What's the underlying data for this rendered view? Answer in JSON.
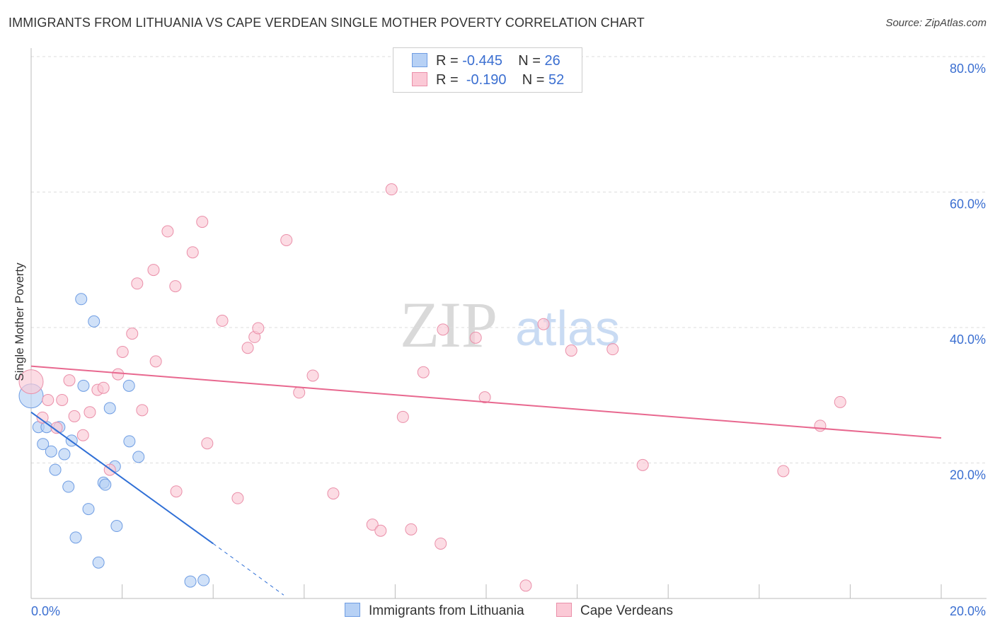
{
  "title": "IMMIGRANTS FROM LITHUANIA VS CAPE VERDEAN SINGLE MOTHER POVERTY CORRELATION CHART",
  "source": "Source: ZipAtlas.com",
  "watermark": {
    "zip": "ZIP",
    "atlas": "atlas"
  },
  "colors": {
    "blue_fill": "#b7d1f5",
    "blue_stroke": "#6f9de3",
    "blue_line": "#2f6fd6",
    "pink_fill": "#fbc9d6",
    "pink_stroke": "#ea8fa9",
    "pink_line": "#e8688f",
    "tick_text": "#3b6fd1"
  },
  "legend": {
    "rows": [
      {
        "r_label": "R =",
        "r_value": "-0.445",
        "n_label": "N =",
        "n_value": "26"
      },
      {
        "r_label": "R =",
        "r_value": "-0.190",
        "n_label": "N =",
        "n_value": "52"
      }
    ]
  },
  "chart_data": {
    "type": "scatter",
    "title": "IMMIGRANTS FROM LITHUANIA VS CAPE VERDEAN SINGLE MOTHER POVERTY CORRELATION CHART",
    "xlabel": "",
    "ylabel": "Single Mother Poverty",
    "xlim": [
      0,
      20
    ],
    "ylim": [
      0,
      80
    ],
    "x_tick_labels": [
      "0.0%",
      "20.0%"
    ],
    "y_ticks": [
      20,
      40,
      60,
      80
    ],
    "y_tick_labels": [
      "20.0%",
      "40.0%",
      "60.0%",
      "80.0%"
    ],
    "grid": true,
    "legend_placement": "top-center",
    "series": [
      {
        "name": "Immigrants from Lithuania",
        "R": -0.445,
        "N": 26,
        "trend": {
          "x0": 0,
          "y0": 27.5,
          "x1": 4.0,
          "y1": 8.1,
          "dash_to_x": 5.55,
          "dash_to_y": 0.5
        },
        "points": [
          [
            0,
            29.9,
            2
          ],
          [
            0.16,
            25.3,
            1
          ],
          [
            0.34,
            25.3,
            1
          ],
          [
            0.62,
            25.3,
            1
          ],
          [
            0.26,
            22.8,
            1
          ],
          [
            0.44,
            21.7,
            1
          ],
          [
            0.73,
            21.3,
            1
          ],
          [
            0.89,
            23.3,
            1
          ],
          [
            0.53,
            19.0,
            1
          ],
          [
            0.82,
            16.5,
            1
          ],
          [
            1.1,
            44.2,
            1
          ],
          [
            1.38,
            40.9,
            1
          ],
          [
            1.15,
            31.4,
            1
          ],
          [
            1.73,
            28.1,
            1
          ],
          [
            2.15,
            31.4,
            1
          ],
          [
            2.16,
            23.2,
            1
          ],
          [
            2.36,
            20.9,
            1
          ],
          [
            1.84,
            19.5,
            1
          ],
          [
            1.59,
            17.1,
            1
          ],
          [
            1.63,
            16.8,
            1
          ],
          [
            1.26,
            13.2,
            1
          ],
          [
            1.88,
            10.7,
            1
          ],
          [
            0.98,
            9.0,
            1
          ],
          [
            1.48,
            5.3,
            1
          ],
          [
            3.5,
            2.5,
            1
          ],
          [
            3.79,
            2.7,
            1
          ]
        ]
      },
      {
        "name": "Cape Verdeans",
        "R": -0.19,
        "N": 52,
        "trend": {
          "x0": 0,
          "y0": 34.3,
          "x1": 20,
          "y1": 23.7
        },
        "points": [
          [
            0,
            32.0,
            2
          ],
          [
            0.25,
            26.7,
            1
          ],
          [
            0.37,
            29.3,
            1
          ],
          [
            0.56,
            25.2,
            1
          ],
          [
            0.68,
            29.3,
            1
          ],
          [
            0.84,
            32.2,
            1
          ],
          [
            0.95,
            26.9,
            1
          ],
          [
            1.14,
            24.1,
            1
          ],
          [
            1.29,
            27.5,
            1
          ],
          [
            1.46,
            30.8,
            1
          ],
          [
            1.59,
            31.1,
            1
          ],
          [
            1.73,
            19.0,
            1
          ],
          [
            1.91,
            33.1,
            1
          ],
          [
            2.01,
            36.4,
            1
          ],
          [
            2.22,
            39.1,
            1
          ],
          [
            2.33,
            46.5,
            1
          ],
          [
            2.44,
            27.8,
            1
          ],
          [
            2.69,
            48.5,
            1
          ],
          [
            2.74,
            35.0,
            1
          ],
          [
            3.0,
            54.2,
            1
          ],
          [
            3.17,
            46.1,
            1
          ],
          [
            3.19,
            15.8,
            1
          ],
          [
            3.55,
            51.1,
            1
          ],
          [
            3.76,
            55.6,
            1
          ],
          [
            3.87,
            22.9,
            1
          ],
          [
            4.2,
            41.0,
            1
          ],
          [
            4.54,
            14.8,
            1
          ],
          [
            4.76,
            37.0,
            1
          ],
          [
            4.91,
            38.6,
            1
          ],
          [
            4.99,
            39.9,
            1
          ],
          [
            5.61,
            52.9,
            1
          ],
          [
            5.89,
            30.4,
            1
          ],
          [
            6.19,
            32.9,
            1
          ],
          [
            6.64,
            15.5,
            1
          ],
          [
            7.5,
            10.9,
            1
          ],
          [
            7.68,
            10.0,
            1
          ],
          [
            7.92,
            60.4,
            1
          ],
          [
            8.17,
            26.8,
            1
          ],
          [
            8.35,
            10.2,
            1
          ],
          [
            8.62,
            33.4,
            1
          ],
          [
            9.0,
            8.1,
            1
          ],
          [
            9.05,
            39.7,
            1
          ],
          [
            9.77,
            38.5,
            1
          ],
          [
            9.97,
            29.7,
            1
          ],
          [
            10.87,
            1.9,
            1
          ],
          [
            11.26,
            40.5,
            1
          ],
          [
            11.87,
            36.6,
            1
          ],
          [
            12.78,
            36.8,
            1
          ],
          [
            13.44,
            19.7,
            1
          ],
          [
            16.53,
            18.8,
            1
          ],
          [
            17.34,
            25.5,
            1
          ],
          [
            17.78,
            29.0,
            1
          ]
        ]
      }
    ]
  }
}
